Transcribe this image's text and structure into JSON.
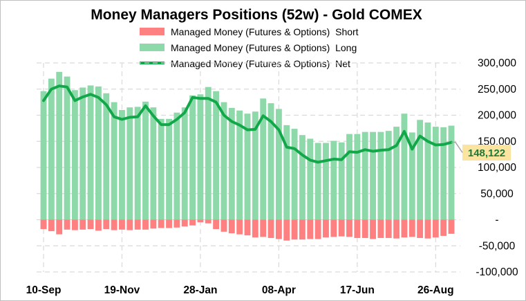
{
  "chart_data": {
    "type": "bar",
    "title": "Money Managers Positions  (52w) - Gold COMEX",
    "legend_placement": "top-center",
    "grid": true,
    "ylim": [
      -100000,
      300000
    ],
    "y_ticks": [
      {
        "value": 300000,
        "label": "300,000"
      },
      {
        "value": 250000,
        "label": "250,000"
      },
      {
        "value": 200000,
        "label": "200,000"
      },
      {
        "value": 150000,
        "label": "150,000"
      },
      {
        "value": 100000,
        "label": "100,000"
      },
      {
        "value": 50000,
        "label": "50,000"
      },
      {
        "value": 0,
        "label": "-"
      },
      {
        "value": -50000,
        "label": "-50,000"
      },
      {
        "value": -100000,
        "label": "-100,000"
      }
    ],
    "x_ticks": [
      {
        "index": 0,
        "label": "10-Sep"
      },
      {
        "index": 10,
        "label": "19-Nov"
      },
      {
        "index": 20,
        "label": "28-Jan"
      },
      {
        "index": 30,
        "label": "08-Apr"
      },
      {
        "index": 40,
        "label": "17-Jun"
      },
      {
        "index": 50,
        "label": "26-Aug"
      }
    ],
    "series": [
      {
        "name": "Managed Money (Futures & Options)  Short",
        "kind": "bar",
        "color": "#ff8080",
        "values": [
          -18000,
          -22000,
          -28000,
          -19000,
          -20000,
          -19000,
          -18000,
          -21000,
          -18000,
          -20000,
          -19000,
          -20000,
          -19000,
          -19000,
          -17000,
          -16000,
          -16000,
          -15000,
          -13000,
          -11000,
          -5000,
          -7000,
          -18000,
          -23000,
          -26000,
          -28000,
          -30000,
          -34000,
          -33000,
          -35000,
          -37000,
          -40000,
          -38000,
          -38000,
          -37000,
          -37000,
          -34000,
          -33000,
          -32000,
          -33000,
          -35000,
          -35000,
          -37000,
          -35000,
          -35000,
          -36000,
          -34000,
          -33000,
          -35000,
          -36000,
          -34000,
          -31000,
          -27000
        ]
      },
      {
        "name": "Managed Money (Futures & Options)  Long",
        "kind": "bar",
        "color": "#8dd9a9",
        "values": [
          246000,
          270000,
          283000,
          274000,
          248000,
          253000,
          257000,
          255000,
          242000,
          225000,
          210000,
          215000,
          216000,
          226000,
          215000,
          193000,
          193000,
          205000,
          215000,
          238000,
          240000,
          254000,
          246000,
          225000,
          214000,
          209000,
          203000,
          207000,
          232000,
          223000,
          212000,
          181000,
          174000,
          162000,
          155000,
          147000,
          147000,
          151000,
          148000,
          164000,
          164000,
          168000,
          168000,
          168000,
          170000,
          178000,
          203000,
          167000,
          191000,
          186000,
          178000,
          177000,
          180000
        ]
      },
      {
        "name": "Managed Money (Futures & Options)  Net",
        "kind": "line",
        "color": "#12a84a",
        "values": [
          228000,
          250000,
          256000,
          254000,
          228000,
          235000,
          240000,
          234000,
          220000,
          197000,
          192000,
          196000,
          197000,
          218000,
          199000,
          182000,
          182000,
          192000,
          205000,
          234000,
          232000,
          232000,
          225000,
          200000,
          188000,
          181000,
          172000,
          173000,
          199000,
          188000,
          172000,
          139000,
          136000,
          124000,
          114000,
          110000,
          113000,
          116000,
          115000,
          130000,
          129000,
          134000,
          131000,
          133000,
          134000,
          142000,
          169000,
          135000,
          160000,
          150000,
          143000,
          144000,
          148122
        ]
      }
    ],
    "last_value_label": "148,122"
  }
}
